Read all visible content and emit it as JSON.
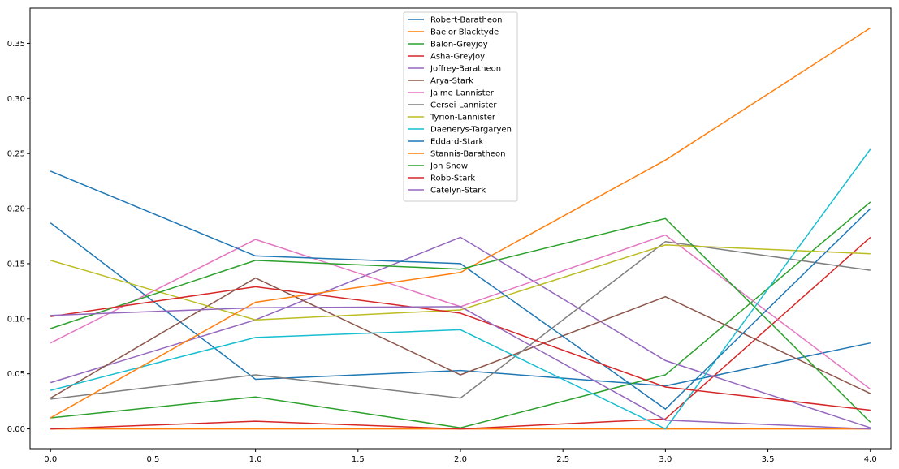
{
  "chart_data": {
    "type": "line",
    "title": "",
    "xlabel": "",
    "ylabel": "",
    "x": [
      0,
      1,
      2,
      3,
      4
    ],
    "xlim": [
      -0.1,
      4.1
    ],
    "ylim": [
      -0.018,
      0.382
    ],
    "xticks": [
      "0.0",
      "0.5",
      "1.0",
      "1.5",
      "2.0",
      "2.5",
      "3.0",
      "3.5",
      "4.0"
    ],
    "xtick_values": [
      0,
      0.5,
      1,
      1.5,
      2,
      2.5,
      3,
      3.5,
      4
    ],
    "yticks": [
      "0.00",
      "0.05",
      "0.10",
      "0.15",
      "0.20",
      "0.25",
      "0.30",
      "0.35"
    ],
    "ytick_values": [
      0,
      0.05,
      0.1,
      0.15,
      0.2,
      0.25,
      0.3,
      0.35
    ],
    "grid": false,
    "legend_position": "top-center",
    "series": [
      {
        "name": "Robert-Baratheon",
        "color": "#1f77b4",
        "values": [
          0.187,
          0.045,
          0.053,
          0.039,
          0.078
        ]
      },
      {
        "name": "Baelor-Blacktyde",
        "color": "#ff7f0e",
        "values": [
          0.0,
          0.0,
          0.0,
          0.0,
          0.0
        ]
      },
      {
        "name": "Balon-Greyjoy",
        "color": "#2ca02c",
        "values": [
          0.01,
          0.029,
          0.001,
          0.049,
          0.206
        ]
      },
      {
        "name": "Asha-Greyjoy",
        "color": "#d62728",
        "values": [
          0.0,
          0.007,
          0.0,
          0.009,
          0.174
        ]
      },
      {
        "name": "Joffrey-Baratheon",
        "color": "#9467bd",
        "values": [
          0.042,
          0.099,
          0.174,
          0.062,
          0.001
        ]
      },
      {
        "name": "Arya-Stark",
        "color": "#8c564b",
        "values": [
          0.028,
          0.137,
          0.049,
          0.12,
          0.032
        ]
      },
      {
        "name": "Jaime-Lannister",
        "color": "#e377c2",
        "values": [
          0.078,
          0.172,
          0.111,
          0.176,
          0.036
        ]
      },
      {
        "name": "Cersei-Lannister",
        "color": "#7f7f7f",
        "values": [
          0.027,
          0.049,
          0.028,
          0.17,
          0.144
        ]
      },
      {
        "name": "Tyrion-Lannister",
        "color": "#bcbd22",
        "values": [
          0.153,
          0.099,
          0.108,
          0.167,
          0.159
        ]
      },
      {
        "name": "Daenerys-Targaryen",
        "color": "#17becf",
        "values": [
          0.035,
          0.083,
          0.09,
          0.0,
          0.254
        ]
      },
      {
        "name": "Eddard-Stark",
        "color": "#1f77b4",
        "values": [
          0.234,
          0.157,
          0.15,
          0.018,
          0.2
        ]
      },
      {
        "name": "Stannis-Baratheon",
        "color": "#ff7f0e",
        "values": [
          0.01,
          0.115,
          0.142,
          0.244,
          0.364
        ]
      },
      {
        "name": "Jon-Snow",
        "color": "#2ca02c",
        "values": [
          0.091,
          0.153,
          0.145,
          0.191,
          0.006
        ]
      },
      {
        "name": "Robb-Stark",
        "color": "#d62728",
        "values": [
          0.102,
          0.129,
          0.105,
          0.038,
          0.017
        ]
      },
      {
        "name": "Catelyn-Stark",
        "color": "#9467bd",
        "values": [
          0.103,
          0.11,
          0.111,
          0.008,
          0.0
        ]
      }
    ]
  }
}
